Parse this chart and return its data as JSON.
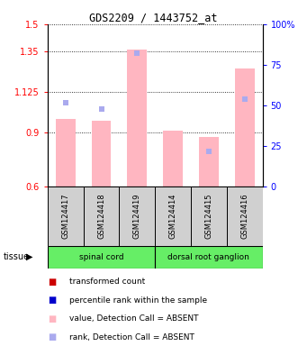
{
  "title": "GDS2209 / 1443752_at",
  "samples": [
    "GSM124417",
    "GSM124418",
    "GSM124419",
    "GSM124414",
    "GSM124415",
    "GSM124416"
  ],
  "bar_values": [
    0.975,
    0.965,
    1.36,
    0.91,
    0.875,
    1.255
  ],
  "rank_percent": [
    52,
    48,
    82,
    null,
    22,
    54
  ],
  "ylim_left": [
    0.6,
    1.5
  ],
  "ylim_right": [
    0,
    100
  ],
  "yticks_left": [
    0.6,
    0.9,
    1.125,
    1.35,
    1.5
  ],
  "ytick_labels_left": [
    "0.6",
    "0.9",
    "1.125",
    "1.35",
    "1.5"
  ],
  "yticks_right": [
    0,
    25,
    50,
    75,
    100
  ],
  "ytick_labels_right": [
    "0",
    "25",
    "50",
    "75",
    "100%"
  ],
  "bar_color_absent": "#FFB6C1",
  "rank_color_absent": "#AAAAEE",
  "bar_width": 0.55,
  "bg_color": "#ffffff",
  "plot_bg": "#ffffff",
  "legend_items": [
    {
      "label": "transformed count",
      "color": "#CC0000"
    },
    {
      "label": "percentile rank within the sample",
      "color": "#0000CC"
    },
    {
      "label": "value, Detection Call = ABSENT",
      "color": "#FFB6C1"
    },
    {
      "label": "rank, Detection Call = ABSENT",
      "color": "#AAAAEE"
    }
  ],
  "tissue_groups": [
    {
      "label": "spinal cord",
      "start": 0,
      "end": 3
    },
    {
      "label": "dorsal root ganglion",
      "start": 3,
      "end": 6
    }
  ],
  "tissue_color": "#66EE66",
  "sample_box_color": "#D0D0D0",
  "tissue_label": "tissue"
}
